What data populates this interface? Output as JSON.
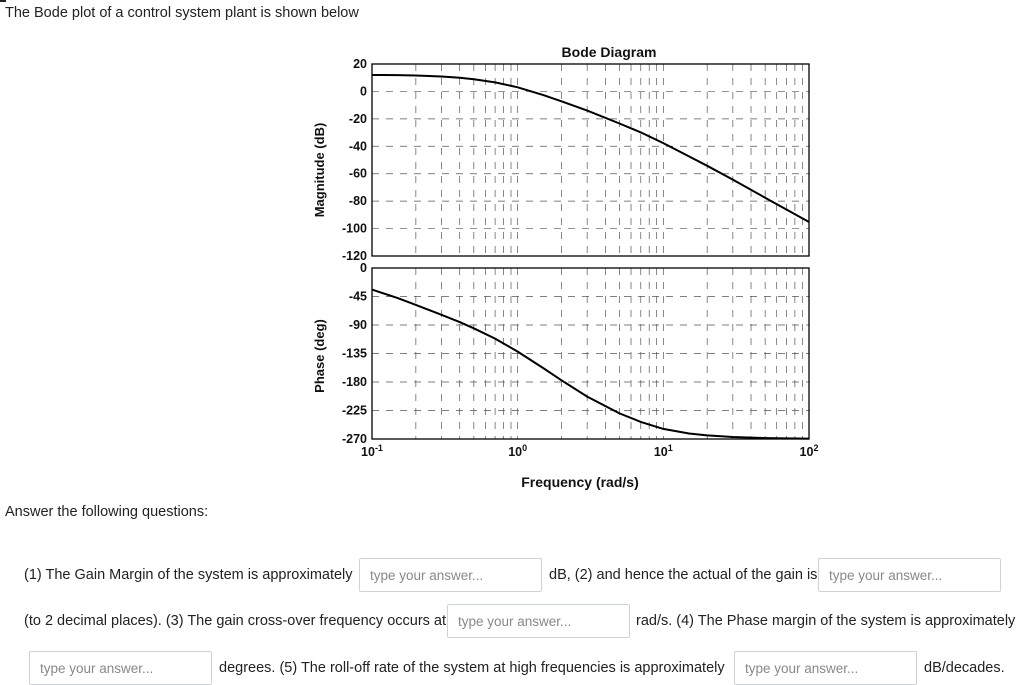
{
  "question": {
    "intro": "The Bode plot of a control system plant is shown below",
    "answer_heading": "Answer the following questions:",
    "q1_text": "(1) The Gain Margin of the system is approximately",
    "q1_unit_q2_text": "dB, (2) and hence the actual of the gain is",
    "q2_tail_q3_text": "(to 2 decimal places). (3) The gain cross-over frequency occurs at",
    "q3_unit_q4_text": "rad/s. (4) The Phase margin of the system is approximately",
    "q4_unit_q5_text": "degrees. (5) The roll-off rate of the system at high frequencies is approximately",
    "q5_unit": "dB/decades.",
    "input_placeholder": "type your answer..."
  },
  "chart_data": {
    "type": "line",
    "title": "Bode Diagram",
    "xlabel": "Frequency (rad/s)",
    "xscale": "log",
    "xlim": [
      0.1,
      100
    ],
    "x_ticks": [
      {
        "base": "10",
        "exp": "-1",
        "value": 0.1
      },
      {
        "base": "10",
        "exp": "0",
        "value": 1
      },
      {
        "base": "10",
        "exp": "1",
        "value": 10
      },
      {
        "base": "10",
        "exp": "2",
        "value": 100
      }
    ],
    "grid": true,
    "magnitude": {
      "ylabel": "Magnitude (dB)",
      "ylim": [
        -120,
        20
      ],
      "y_ticks": [
        "20",
        "0",
        "-20",
        "-40",
        "-60",
        "-80",
        "-100",
        "-120"
      ],
      "x": [
        0.1,
        0.15,
        0.2,
        0.3,
        0.4,
        0.5,
        0.7,
        1,
        1.5,
        2,
        3,
        5,
        7,
        10,
        15,
        20,
        30,
        50,
        70,
        100
      ],
      "values": [
        12.0,
        11.9,
        11.6,
        10.9,
        10.0,
        8.9,
        6.6,
        3.0,
        -2.7,
        -7.2,
        -14.0,
        -23.4,
        -29.9,
        -37.7,
        -47.4,
        -54.2,
        -64.3,
        -77.5,
        -86.1,
        -95.2
      ]
    },
    "phase": {
      "ylabel": "Phase (deg)",
      "ylim": [
        -270,
        0
      ],
      "y_ticks": [
        "0",
        "-45",
        "-90",
        "-135",
        "-180",
        "-225",
        "-270"
      ],
      "x": [
        0.1,
        0.15,
        0.2,
        0.3,
        0.4,
        0.5,
        0.7,
        1,
        1.5,
        2,
        3,
        5,
        7,
        10,
        15,
        20,
        30,
        50,
        70,
        100
      ],
      "values": [
        -34.1,
        -47.5,
        -58.2,
        -73.9,
        -85.5,
        -95.2,
        -111.4,
        -132.0,
        -158.1,
        -177.3,
        -203.0,
        -229.5,
        -243.0,
        -254.0,
        -261.3,
        -264.3,
        -266.9,
        -268.6,
        -269.0,
        -269.3
      ]
    }
  }
}
